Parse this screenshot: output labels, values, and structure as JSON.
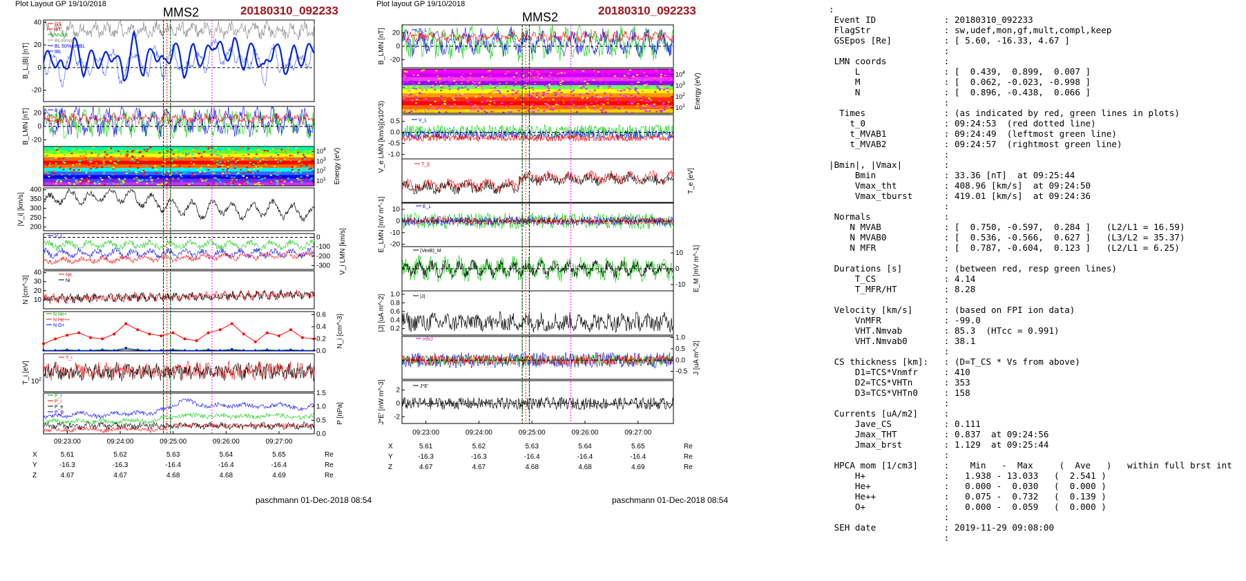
{
  "left": {
    "plot_label": "Plot Layout GP 19/10/2018",
    "spacecraft": "MMS2",
    "event": "20180310_092233",
    "footer": "paschmann 01-Dec-2018 08:54"
  },
  "middle": {
    "plot_label": "Plot layout GP 19/10/2018",
    "spacecraft": "MMS2",
    "event": "20180310_092233",
    "footer": "paschmann 01-Dec-2018 08:54"
  },
  "time_ticks": [
    "09:23:00",
    "09:24:00",
    "09:25:00",
    "09:26:00",
    "09:27:00"
  ],
  "position_table": {
    "rows": [
      {
        "label": "X",
        "values": [
          "5.61",
          "5.62",
          "5.63",
          "5.64",
          "5.65"
        ],
        "unit": "Re"
      },
      {
        "label": "Y",
        "values": [
          "-16.3",
          "-16.3",
          "-16.4",
          "-16.4",
          "-16.4"
        ],
        "unit": "Re"
      },
      {
        "label": "Z",
        "values": [
          "4.67",
          "4.67",
          "4.68",
          "4.68",
          "4.69"
        ],
        "unit": "Re"
      }
    ]
  },
  "colors": {
    "event_title": "#a0141a",
    "red": "#ff0000",
    "green": "#00cc00",
    "blue": "#0000ff",
    "magenta": "#ff00ff",
    "black": "#000000"
  },
  "left_panels": [
    {
      "ylabel": "B_L,|B| [nT]",
      "ticks": [
        "40",
        "20",
        "0",
        "-20"
      ],
      "legend": [
        "GS",
        "HT",
        "MVAB",
        "BLminvar",
        "BL 50% of tBL",
        "tBL"
      ]
    },
    {
      "ylabel": "B_LMN [nT]",
      "ticks": [
        "20",
        "0",
        "-20"
      ],
      "legend": [
        "B_L",
        "B_M",
        "B_N"
      ]
    },
    {
      "ylabel": "Energy (eV)",
      "ticks": [
        "10^4",
        "10^3",
        "10^2",
        "10^1"
      ],
      "legend": []
    },
    {
      "ylabel": "|V_i| [km/s]",
      "ticks": [
        "400",
        "350",
        "300",
        "250",
        "200"
      ],
      "legend": []
    },
    {
      "ylabel": "V_i LMN [km/s]",
      "ticks": [
        "0",
        "-100",
        "-200",
        "-300"
      ],
      "legend": [
        "V_L"
      ]
    },
    {
      "ylabel": "N [cm^-3]",
      "ticks": [
        "40",
        "30",
        "20",
        "10"
      ],
      "legend": [
        "Ne",
        "Ni"
      ]
    },
    {
      "ylabel": "N_i [cm^-3]",
      "ticks": [
        "0.6",
        "0.4",
        "0.2",
        "0.0"
      ],
      "legend": [
        "N He+",
        "N He++",
        "N O+"
      ]
    },
    {
      "ylabel": "T_i [eV]",
      "ticks": [
        "10^2"
      ],
      "legend": [
        "T_i"
      ]
    },
    {
      "ylabel": "P [nPa]",
      "ticks": [
        "1.5",
        "1.0",
        "0.5",
        "0.0"
      ],
      "legend": [
        "P_t",
        "P_i",
        "P_e",
        "P_B"
      ]
    }
  ],
  "middle_panels": [
    {
      "ylabel": "B_LMN [nT]",
      "ticks": [
        "20",
        "0",
        "-20"
      ],
      "legend": [
        "B_L",
        "B_N"
      ]
    },
    {
      "ylabel": "Energy (eV)",
      "ticks": [
        "10^4",
        "10^3",
        "10^2",
        "10^1"
      ],
      "legend": []
    },
    {
      "ylabel": "V_e LMN [km/s](x10^3)",
      "ticks": [
        "0.5",
        "0.0",
        "-0.5",
        "-1.0"
      ],
      "legend": [
        "V_L"
      ]
    },
    {
      "ylabel": "T_e [eV]",
      "ticks": [],
      "legend": [
        "T_||"
      ]
    },
    {
      "ylabel": "E_LMN [mV m^-1]",
      "ticks": [
        "10",
        "0",
        "-10",
        "-20"
      ],
      "legend": [
        "E_L"
      ]
    },
    {
      "ylabel": "E_M [mV m^-1]",
      "ticks": [
        "10",
        "0",
        "-10"
      ],
      "legend": [
        "(VexB)_M"
      ]
    },
    {
      "ylabel": "|J| [uA m^-2]",
      "ticks": [
        "1.0",
        "0.8",
        "0.6",
        "0.4",
        "0.2"
      ],
      "legend": [
        "|J|"
      ]
    },
    {
      "ylabel": "J [uA m^-2]",
      "ticks": [
        "1.0",
        "0.5",
        "0.0",
        "-0.5"
      ],
      "legend": [
        "mfxJ"
      ]
    },
    {
      "ylabel": "J*E' [nW m^-3]",
      "ticks": [
        "2",
        "0",
        "-2"
      ],
      "legend": [
        "J*E'"
      ]
    }
  ],
  "summary_lines": [
    ":",
    " Event ID             : 20180310_092233",
    " FlagStr              : sw,udef,mon,gf,mult,compl,keep",
    " GSEpos [Re]          : [ 5.60, -16.33, 4.67 ]",
    "                      :",
    " LMN coords           :",
    "     L                : [  0.439,  0.899,  0.007 ]",
    "     M                : [  0.062, -0.023, -0.998 ]",
    "     N                : [  0.896, -0.438,  0.066 ]",
    "                      :",
    "  Times               : (as indicated by red, green lines in plots)",
    "    t_0               : 09:24:53  (red dotted line)",
    "    t_MVAB1           : 09:24:49  (leftmost green line)",
    "    t_MVAB2           : 09:24:57  (rightmost green line)",
    "                      :",
    "|Bmin|, |Vmax|        :",
    "     Bmin             : 33.36 [nT]  at 09:25:44",
    "     Vmax_tht         : 408.96 [km/s]  at 09:24:50",
    "     Vmax_tburst      : 419.01 [km/s]  at 09:24:36",
    "                      :",
    " Normals              :",
    "    N MVAB            : [  0.750, -0.597,  0.284 ]   (L2/L1 = 16.59)",
    "    N MVAB0           : [  0.536, -0.566,  0.627 ]   (L3/L2 = 35.37)",
    "    N MFR             : [  0.787, -0.604,  0.123 ]   (L2/L1 = 6.25)",
    "                      :",
    " Durations [s]        : (between red, resp green lines)",
    "     T_CS             : 4.14",
    "     T_MFR/HT         : 8.28",
    "                      :",
    " Velocity [km/s]      : (based on FPI ion data)",
    "     VnMFR            : -99.0",
    "     VHT.Nmvab        : 85.3  (HTcc = 0.991)",
    "     VHT.Nmvab0       : 38.1",
    "                      :",
    " CS thickness [km]:   : (D=T_CS * Vs from above)",
    "     D1=TCS*Vnmfr     : 410",
    "     D2=TCS*VHTn      : 353",
    "     D3=TCS*VHTn0     : 158",
    "                      :",
    " Currents [uA/m2]     :",
    "     Jave_CS          : 0.111",
    "     Jmax_THT         : 0.837  at 09:24:56",
    "     Jmax_brst        : 1.129  at 09:25:44",
    "                      :",
    " HPCA mom [1/cm3]     :    Min   -  Max     (  Ave   )   within full brst int",
    "     H+               :   1.938 - 13.033   (  2.541 )",
    "     He+              :   0.000 -  0.030   (  0.000 )",
    "     He++             :   0.075 -  0.732   (  0.139 )",
    "     O+               :   0.000 -  0.059   (  0.000 )",
    "                      :",
    " SEH date             : 2019-11-29 09:08:00",
    "                      :"
  ],
  "chart_data": [
    {
      "type": "line",
      "title": "MMS2 20180310_092233",
      "xlabel": "",
      "x_ticks": [
        "09:23:00",
        "09:24:00",
        "09:25:00",
        "09:26:00",
        "09:27:00"
      ],
      "panels": [
        {
          "ylabel": "B_L,|B| [nT]",
          "ylim": [
            -30,
            42
          ],
          "series": [
            {
              "name": "B_L",
              "values": [
                5,
                10,
                -5,
                22,
                0,
                10,
                4,
                15,
                -10,
                24,
                -3,
                18,
                0,
                20,
                -2,
                15,
                5,
                25,
                10,
                20,
                5,
                18,
                -5,
                22,
                0,
                12,
                8,
                20
              ]
            },
            {
              "name": "|B|",
              "values": [
                30,
                35,
                25,
                38,
                32,
                36,
                30,
                38,
                28,
                38,
                35,
                36,
                30,
                37,
                34,
                35,
                33,
                38,
                36,
                37,
                34,
                36,
                30,
                38,
                33,
                35,
                34,
                36
              ]
            }
          ]
        },
        {
          "ylabel": "|V_i| [km/s]",
          "ylim": [
            180,
            410
          ],
          "series": [
            {
              "name": "|V_i|",
              "values": [
                330,
                360,
                350,
                380,
                340,
                370,
                360,
                390,
                350,
                380,
                320,
                360,
                300,
                330,
                280,
                320,
                260,
                330,
                290,
                300,
                260,
                310,
                280,
                320,
                270,
                300,
                260,
                280
              ]
            }
          ]
        },
        {
          "ylabel": "N_i [cm^-3]",
          "ylim": [
            0,
            0.65
          ],
          "series": [
            {
              "name": "N He++",
              "values": [
                0.12,
                0.2,
                0.26,
                0.3,
                0.22,
                0.2,
                0.28,
                0.45,
                0.35,
                0.28,
                0.25,
                0.3,
                0.2,
                0.17,
                0.3,
                0.35,
                0.45,
                0.28,
                0.15,
                0.3,
                0.25,
                0.35,
                0.22,
                0.2
              ]
            },
            {
              "name": "N He+",
              "values": [
                0.01,
                0.01,
                0.02,
                0.01,
                0.01,
                0.02,
                0.01,
                0.05,
                0.02,
                0.01,
                0.01,
                0.02,
                0.01,
                0.01,
                0.02,
                0.01,
                0.03,
                0.01,
                0.01,
                0.02,
                0.01,
                0.02,
                0.01,
                0.01
              ]
            }
          ]
        },
        {
          "ylabel": "P [nPa]",
          "ylim": [
            0,
            1.5
          ],
          "series": [
            {
              "name": "P_t",
              "values": [
                0.6,
                0.7,
                0.6,
                0.8,
                0.7,
                0.6,
                0.8,
                0.7,
                0.8,
                0.7,
                0.9,
                1.0,
                1.3,
                1.1,
                1.0,
                1.1,
                1.0,
                1.1,
                1.0,
                1.0,
                1.1,
                1.0,
                0.9,
                1.1
              ]
            },
            {
              "name": "P_i",
              "values": [
                0.4,
                0.5,
                0.4,
                0.5,
                0.4,
                0.5,
                0.4,
                0.5,
                0.5,
                0.4,
                0.6,
                0.6,
                0.7,
                0.7,
                0.6,
                0.7,
                0.6,
                0.7,
                0.6,
                0.7,
                0.7,
                0.6,
                0.6,
                0.7
              ]
            },
            {
              "name": "P_e",
              "values": [
                0.1,
                0.2,
                0.1,
                0.2,
                0.2,
                0.1,
                0.2,
                0.2,
                0.2,
                0.1,
                0.2,
                0.3,
                0.3,
                0.3,
                0.3,
                0.3,
                0.3,
                0.3,
                0.3,
                0.3,
                0.3,
                0.3,
                0.3,
                0.3
              ]
            }
          ]
        }
      ],
      "markers": [
        {
          "time": "09:24:53",
          "color": "red",
          "style": "dotted"
        },
        {
          "time": "09:24:49",
          "color": "green"
        },
        {
          "time": "09:24:57",
          "color": "green"
        },
        {
          "time": "09:25:44",
          "color": "magenta",
          "style": "dotted"
        }
      ]
    }
  ]
}
